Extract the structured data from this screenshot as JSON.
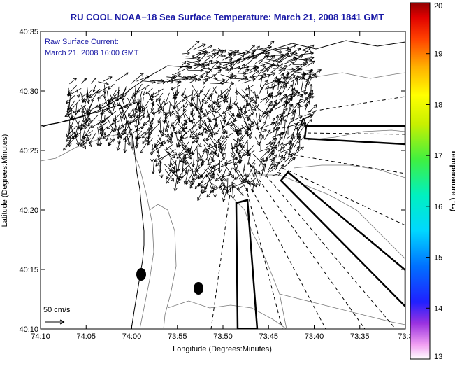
{
  "chart_data": {
    "type": "vector_field_map",
    "title": "RU COOL  NOAA−18  Sea Surface Temperature:  March 21, 2008 1841 GMT",
    "subtitle_line1": "Raw Surface Current:",
    "subtitle_line2": "March 21, 2008 16:00 GMT",
    "xlabel": "Longitude (Degrees:Minutes)",
    "ylabel": "Latitude (Degrees:Minutes)",
    "x_ticks": [
      "74:10",
      "74:05",
      "74:00",
      "73:55",
      "73:50",
      "73:45",
      "73:40",
      "73:35",
      "73:3"
    ],
    "y_ticks": [
      "40:35",
      "40:30",
      "40:25",
      "40:20",
      "40:15",
      "40:10"
    ],
    "xlim_minutes_west": [
      4450,
      4410
    ],
    "ylim_minutes_north": [
      2410,
      2435
    ],
    "scale_label": "50 cm/s",
    "colorbar": {
      "title": "Temperature (°C)",
      "ticks": [
        "20",
        "19",
        "18",
        "17",
        "16",
        "15",
        "14",
        "13"
      ],
      "range": [
        13,
        20
      ]
    }
  }
}
